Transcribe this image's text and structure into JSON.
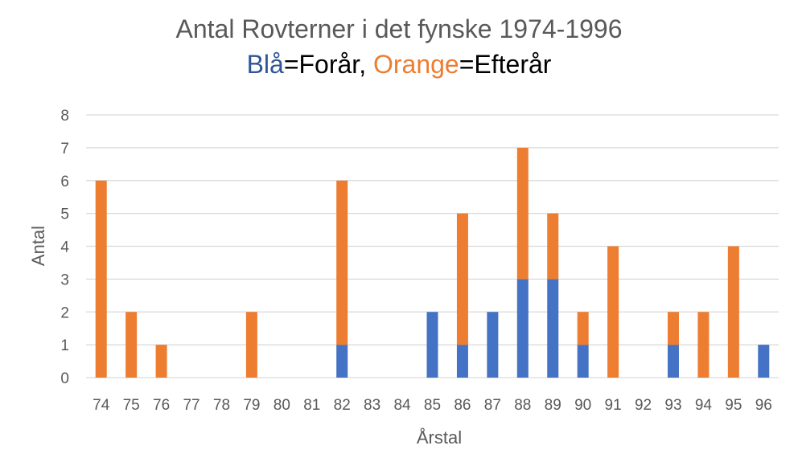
{
  "chart_data": {
    "type": "bar",
    "stacked": true,
    "title": "Antal Rovterner i det fynske 1974-1996",
    "subtitle": {
      "blue_word": "Blå",
      "blue_eq": "=Forår, ",
      "orange_word": "Orange",
      "orange_eq": "=Efterår"
    },
    "xlabel": "Årstal",
    "ylabel": "Antal",
    "ylim": [
      0,
      8
    ],
    "yticks": [
      "0",
      "1",
      "2",
      "3",
      "4",
      "5",
      "6",
      "7",
      "8"
    ],
    "grid": true,
    "categories": [
      "74",
      "75",
      "76",
      "77",
      "78",
      "79",
      "80",
      "81",
      "82",
      "83",
      "84",
      "85",
      "86",
      "87",
      "88",
      "89",
      "90",
      "91",
      "92",
      "93",
      "94",
      "95",
      "96"
    ],
    "series": [
      {
        "color": "#4472c4",
        "values": [
          0,
          0,
          0,
          0,
          0,
          0,
          0,
          0,
          1,
          0,
          0,
          2,
          1,
          2,
          3,
          3,
          1,
          0,
          0,
          1,
          0,
          0,
          1
        ]
      },
      {
        "color": "#ed7d31",
        "values": [
          6,
          2,
          1,
          0,
          0,
          2,
          0,
          0,
          5,
          0,
          0,
          0,
          4,
          0,
          4,
          2,
          1,
          4,
          0,
          1,
          2,
          4,
          0
        ]
      }
    ]
  }
}
